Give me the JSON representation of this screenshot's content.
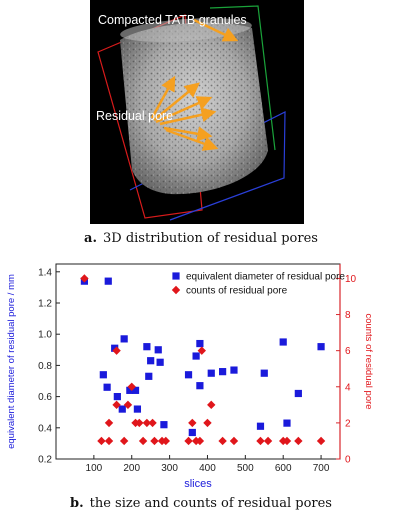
{
  "figure_a": {
    "label_granules": "Compacted TATB granules",
    "label_pore": "Residual pore"
  },
  "caption_a": {
    "letter": "a.",
    "text": "3D distribution of residual pores"
  },
  "caption_b": {
    "letter": "b.",
    "text": "the size and counts of residual pores"
  },
  "colors": {
    "series_diameter": "#1a1adb",
    "series_counts": "#e0161b",
    "arrow": "#f5a020"
  },
  "chart_data": {
    "type": "scatter",
    "xlabel": "slices",
    "ylabel_left": "equivalent diameter of residual pore / mm",
    "ylabel_right": "counts of residual pore",
    "xlim": [
      0,
      750
    ],
    "ylim_left": [
      0.2,
      1.45
    ],
    "ylim_right": [
      0,
      10.8
    ],
    "xticks": [
      100,
      200,
      300,
      400,
      500,
      600,
      700
    ],
    "yticks_left": [
      0.2,
      0.4,
      0.6,
      0.8,
      1.0,
      1.2,
      1.4
    ],
    "yticks_right": [
      0,
      2,
      4,
      6,
      8,
      10
    ],
    "legend_position": "top-right",
    "series": [
      {
        "name": "equivalent diameter of residual pore",
        "axis": "left",
        "marker": "square",
        "points": [
          [
            75,
            1.34
          ],
          [
            138,
            1.34
          ],
          [
            125,
            0.74
          ],
          [
            135,
            0.66
          ],
          [
            155,
            0.91
          ],
          [
            162,
            0.6
          ],
          [
            175,
            0.52
          ],
          [
            180,
            0.97
          ],
          [
            195,
            0.64
          ],
          [
            210,
            0.64
          ],
          [
            215,
            0.52
          ],
          [
            240,
            0.92
          ],
          [
            245,
            0.73
          ],
          [
            250,
            0.83
          ],
          [
            270,
            0.9
          ],
          [
            275,
            0.82
          ],
          [
            285,
            0.42
          ],
          [
            350,
            0.74
          ],
          [
            360,
            0.37
          ],
          [
            370,
            0.86
          ],
          [
            380,
            0.94
          ],
          [
            380,
            0.67
          ],
          [
            410,
            0.75
          ],
          [
            440,
            0.76
          ],
          [
            470,
            0.77
          ],
          [
            540,
            0.41
          ],
          [
            550,
            0.75
          ],
          [
            600,
            0.95
          ],
          [
            610,
            0.43
          ],
          [
            640,
            0.62
          ],
          [
            700,
            0.92
          ]
        ]
      },
      {
        "name": "counts of residual pore",
        "axis": "right",
        "marker": "diamond",
        "points": [
          [
            75,
            10
          ],
          [
            120,
            1
          ],
          [
            140,
            1
          ],
          [
            140,
            2
          ],
          [
            160,
            3
          ],
          [
            160,
            6
          ],
          [
            180,
            1
          ],
          [
            190,
            3
          ],
          [
            200,
            4
          ],
          [
            210,
            2
          ],
          [
            220,
            2
          ],
          [
            230,
            1
          ],
          [
            240,
            2
          ],
          [
            255,
            2
          ],
          [
            260,
            1
          ],
          [
            280,
            1
          ],
          [
            290,
            1
          ],
          [
            350,
            1
          ],
          [
            360,
            2
          ],
          [
            370,
            1
          ],
          [
            380,
            1
          ],
          [
            385,
            6
          ],
          [
            400,
            2
          ],
          [
            410,
            3
          ],
          [
            440,
            1
          ],
          [
            470,
            1
          ],
          [
            540,
            1
          ],
          [
            560,
            1
          ],
          [
            600,
            1
          ],
          [
            610,
            1
          ],
          [
            640,
            1
          ],
          [
            700,
            1
          ]
        ]
      }
    ]
  }
}
